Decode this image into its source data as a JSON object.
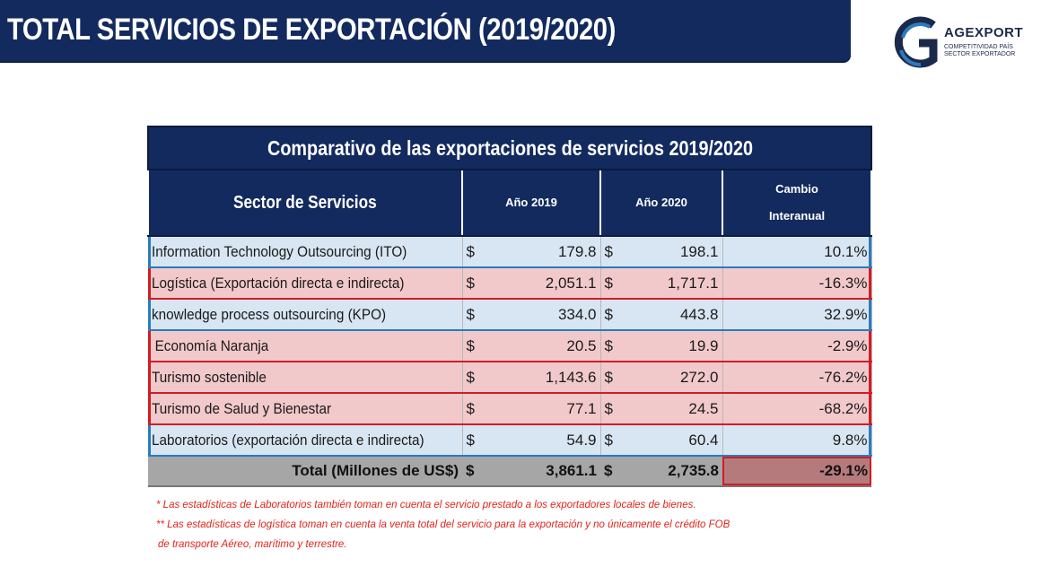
{
  "header": {
    "title": "TOTAL SERVICIOS DE EXPORTACIÓN  (2019/2020)"
  },
  "logo": {
    "name": "AGEXPORT",
    "tagline_1": "COMPETITIVIDAD PAÍS",
    "tagline_2": "SECTOR EXPORTADOR",
    "icon": "agexport-g-logo"
  },
  "table": {
    "caption": "Comparativo de las exportaciones de servicios  2019/2020",
    "headers": {
      "sector": "Sector de Servicios",
      "y2019": "Año  2019",
      "y2020": "Año 2020",
      "change_1": "Cambio",
      "change_2": "Interanual"
    },
    "currency": "$",
    "rows": [
      {
        "sector": "Information Technology Outsourcing (ITO)",
        "y2019": "179.8",
        "y2020": "198.1",
        "change": "10.1%"
      },
      {
        "sector": "Logística (Exportación directa e indirecta)",
        "y2019": "2,051.1",
        "y2020": "1,717.1",
        "change": "-16.3%"
      },
      {
        "sector": "knowledge process outsourcing (KPO)",
        "y2019": "334.0",
        "y2020": "443.8",
        "change": "32.9%"
      },
      {
        "sector": " Economía Naranja",
        "y2019": "20.5",
        "y2020": "19.9",
        "change": "-2.9%"
      },
      {
        "sector": "Turismo sostenible",
        "y2019": "1,143.6",
        "y2020": "272.0",
        "change": "-76.2%"
      },
      {
        "sector": "Turismo de Salud y Bienestar",
        "y2019": "77.1",
        "y2020": "24.5",
        "change": "-68.2%"
      },
      {
        "sector": "Laboratorios (exportación directa e indirecta)",
        "y2019": "54.9",
        "y2020": "60.4",
        "change": "9.8%"
      }
    ],
    "total": {
      "label": "Total (Millones de US$)",
      "y2019": "3,861.1",
      "y2020": "2,735.8",
      "change": "-29.1%"
    }
  },
  "notes": {
    "note_1": "* Las estadísticas de Laboratorios también toman en cuenta el servicio prestado a los exportadores locales de bienes.",
    "note_2a": "** Las estadísticas de logística toman en cuenta la venta total del servicio para la exportación y no únicamente el crédito FOB",
    "note_2b": "de transporte Aéreo, marítimo y terrestre."
  },
  "colors": {
    "navy": "#132a5e",
    "blue_row": "#d8e6f3",
    "blue_border": "#2a7bc0",
    "red_row": "#f2c9cb",
    "red_border": "#d11c24",
    "total_gray": "#a6a6a6",
    "note_red": "#e2231a"
  }
}
